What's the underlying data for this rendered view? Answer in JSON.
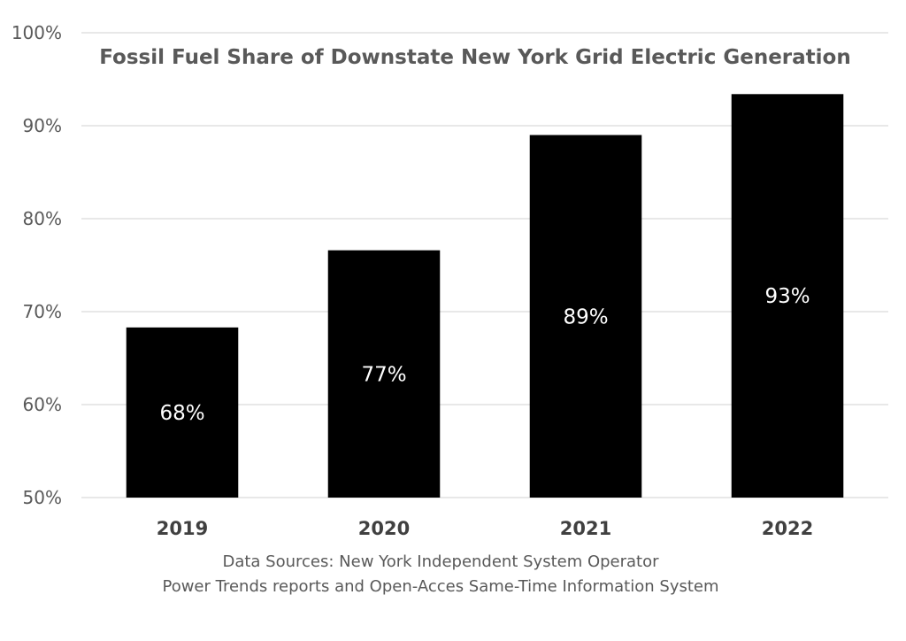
{
  "chart_data": {
    "type": "bar",
    "title": "Fossil Fuel Share of Downstate New York Grid Electric Generation",
    "categories": [
      "2019",
      "2020",
      "2021",
      "2022"
    ],
    "values": [
      68.3,
      76.6,
      89.0,
      93.4
    ],
    "data_labels": [
      "68%",
      "77%",
      "89%",
      "93%"
    ],
    "yticks": [
      50,
      60,
      70,
      80,
      90,
      100
    ],
    "ytick_labels": [
      "50%",
      "60%",
      "70%",
      "80%",
      "90%",
      "100%"
    ],
    "ylim": [
      50,
      100
    ],
    "grid": true,
    "bar_color": "#000000",
    "source_lines": [
      "Data Sources: New York Independent System Operator",
      "Power Trends reports and Open-Acces Same-Time Information System"
    ]
  }
}
